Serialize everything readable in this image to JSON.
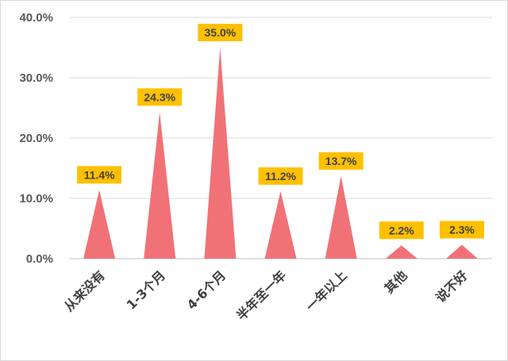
{
  "chart_data": {
    "type": "area",
    "shape": "triangle-peaks",
    "categories": [
      "从来没有",
      "1-3个月",
      "4-6个月",
      "半年至一年",
      "一年以上",
      "其他",
      "说不好"
    ],
    "values": [
      11.4,
      24.3,
      35.0,
      11.2,
      13.7,
      2.2,
      2.3
    ],
    "data_labels": [
      "11.4%",
      "24.3%",
      "35.0%",
      "11.2%",
      "13.7%",
      "2.2%",
      "2.3%"
    ],
    "y_ticks": [
      "0.0%",
      "10.0%",
      "20.0%",
      "30.0%",
      "40.0%"
    ],
    "ylim": [
      0,
      40
    ],
    "grid": true,
    "legend": "none",
    "title": "",
    "xlabel": "",
    "ylabel": "",
    "colors": {
      "peak_fill": "#f07277",
      "label_fill": "#ffc000",
      "grid": "#d9d9d9",
      "axis": "#bfbfbf"
    }
  }
}
